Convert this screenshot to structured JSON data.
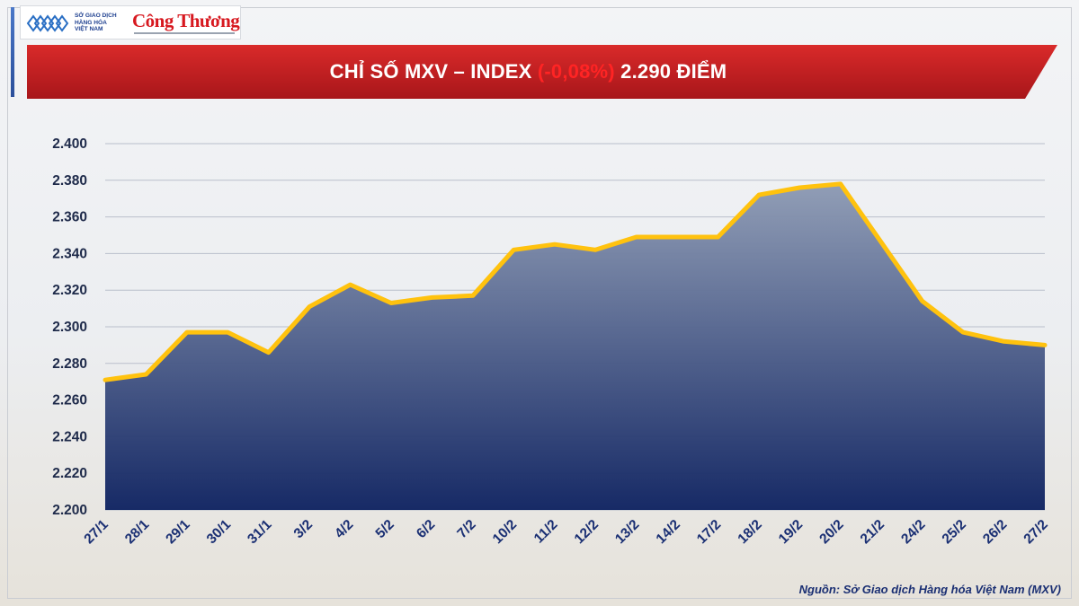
{
  "logos": {
    "mxv_lines": [
      "SỞ GIAO DỊCH",
      "HÀNG HÓA",
      "VIỆT NAM"
    ],
    "congthuong": "Công Thương"
  },
  "banner": {
    "prefix": "CHỈ SỐ MXV – INDEX ",
    "change": "(-0,08%)",
    "suffix": " 2.290 ĐIỂM"
  },
  "colors": {
    "banner_red": "#c8201f",
    "line": "#ffc20e",
    "area_top": "#8e9bb4",
    "area_bottom": "#102462",
    "grid": "#b9bfcb",
    "tick_text": "#1a2f73"
  },
  "chart_data": {
    "type": "area",
    "title": "CHỈ SỐ MXV – INDEX (-0,08%) 2.290 ĐIỂM",
    "categories": [
      "27/1",
      "28/1",
      "29/1",
      "30/1",
      "31/1",
      "3/2",
      "4/2",
      "5/2",
      "6/2",
      "7/2",
      "10/2",
      "11/2",
      "12/2",
      "13/2",
      "14/2",
      "17/2",
      "18/2",
      "19/2",
      "20/2",
      "21/2",
      "24/2",
      "25/2",
      "26/2",
      "27/2"
    ],
    "values": [
      2271,
      2274,
      2297,
      2297,
      2286,
      2311,
      2323,
      2313,
      2316,
      2317,
      2342,
      2345,
      2342,
      2349,
      2349,
      2349,
      2372,
      2376,
      2378,
      2346,
      2314,
      2297,
      2292,
      2290
    ],
    "y_ticks": [
      "2.200",
      "2.220",
      "2.240",
      "2.260",
      "2.280",
      "2.300",
      "2.320",
      "2.340",
      "2.360",
      "2.380",
      "2.400"
    ],
    "ylim": [
      2200,
      2400
    ],
    "grid": true,
    "legend": "none"
  },
  "source": "Nguồn: Sở Giao dịch Hàng hóa Việt Nam (MXV)"
}
